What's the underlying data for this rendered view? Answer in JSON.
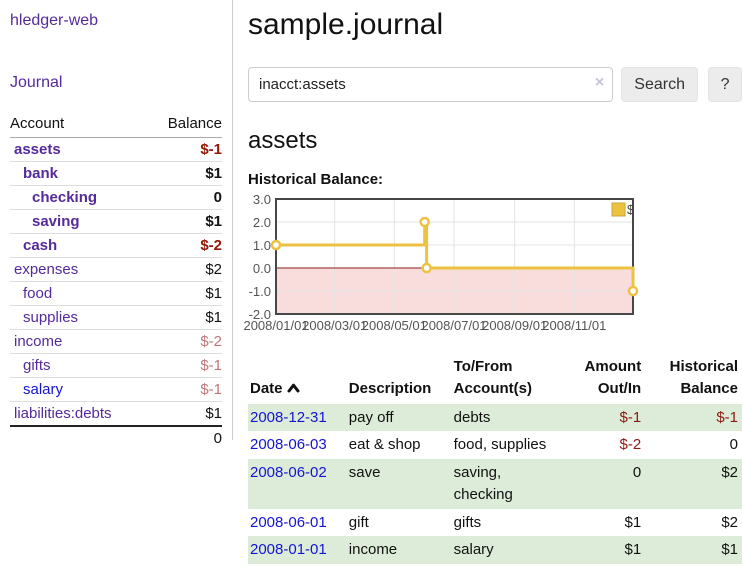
{
  "app": {
    "brand": "hledger-web",
    "nav": {
      "journal": "Journal"
    }
  },
  "sidebar": {
    "columns": {
      "account": "Account",
      "balance": "Balance"
    },
    "accounts": [
      {
        "name": "assets",
        "balance": "$-1",
        "depth": 0,
        "bold": true,
        "balance_class": "neg-strong"
      },
      {
        "name": "bank",
        "balance": "$1",
        "depth": 1,
        "bold": true,
        "balance_class": "normal"
      },
      {
        "name": "checking",
        "balance": "0",
        "depth": 2,
        "bold": true,
        "balance_class": "normal"
      },
      {
        "name": "saving",
        "balance": "$1",
        "depth": 2,
        "bold": true,
        "balance_class": "normal"
      },
      {
        "name": "cash",
        "balance": "$-2",
        "depth": 1,
        "bold": true,
        "balance_class": "neg-strong"
      },
      {
        "name": "expenses",
        "balance": "$2",
        "depth": 0,
        "bold": false,
        "balance_class": "normal"
      },
      {
        "name": "food",
        "balance": "$1",
        "depth": 1,
        "bold": false,
        "balance_class": "normal"
      },
      {
        "name": "supplies",
        "balance": "$1",
        "depth": 1,
        "bold": false,
        "balance_class": "normal"
      },
      {
        "name": "income",
        "balance": "$-2",
        "depth": 0,
        "bold": false,
        "balance_class": "neg-soft"
      },
      {
        "name": "gifts",
        "balance": "$-1",
        "depth": 1,
        "bold": false,
        "balance_class": "neg-soft"
      },
      {
        "name": "salary",
        "balance": "$-1",
        "depth": 1,
        "bold": false,
        "balance_class": "neg-soft",
        "link_color": "blue"
      },
      {
        "name": "liabilities:debts",
        "balance": "$1",
        "depth": 0,
        "bold": false,
        "balance_class": "normal"
      }
    ],
    "total": "0"
  },
  "main": {
    "title": "sample.journal",
    "search": {
      "value": "inacct:assets",
      "clear_icon": "×",
      "search_button": "Search",
      "help_button": "?"
    },
    "account_heading": "assets",
    "chart_label": "Historical Balance:"
  },
  "chart_data": {
    "type": "line",
    "title": "Historical Balance",
    "step": true,
    "x_range": [
      "2008-01-01",
      "2008-12-31"
    ],
    "ylim": [
      -2,
      3
    ],
    "y_ticks": [
      3.0,
      2.0,
      1.0,
      0.0,
      -1.0,
      -2.0
    ],
    "x_ticks": [
      {
        "date": "2008-01-01",
        "label": "2008/01/01"
      },
      {
        "date": "2008-03-01",
        "label": "2008/03/01"
      },
      {
        "date": "2008-05-01",
        "label": "2008/05/01"
      },
      {
        "date": "2008-07-01",
        "label": "2008/07/01"
      },
      {
        "date": "2008-09-01",
        "label": "2008/09/01"
      },
      {
        "date": "2008-11-01",
        "label": "2008/11/01"
      }
    ],
    "series": [
      {
        "name": "$",
        "color": "#EDC240",
        "points": [
          {
            "x": "2008-01-01",
            "y": 1
          },
          {
            "x": "2008-06-01",
            "y": 2
          },
          {
            "x": "2008-06-03",
            "y": 0
          },
          {
            "x": "2008-12-31",
            "y": -1
          }
        ]
      }
    ],
    "legend": {
      "label": "$",
      "position": "top-right"
    },
    "grid": true,
    "negative_fill": "#f9dddd",
    "zero_line_color": "#8b1a1a",
    "tick_label_color": "#545454",
    "border_color": "#474747"
  },
  "register": {
    "headers": {
      "date": "Date",
      "description": "Description",
      "tofrom_line1": "To/From",
      "tofrom_line2": "Account(s)",
      "amount_line1": "Amount",
      "amount_line2": "Out/In",
      "balance_line1": "Historical",
      "balance_line2": "Balance"
    },
    "rows": [
      {
        "date": "2008-12-31",
        "description": "pay off",
        "accounts": "debts",
        "amount": "$-1",
        "balance": "$-1",
        "amount_class": "neg",
        "balance_class": "neg"
      },
      {
        "date": "2008-06-03",
        "description": "eat & shop",
        "accounts": "food, supplies",
        "amount": "$-2",
        "balance": "0",
        "amount_class": "neg",
        "balance_class": "normal"
      },
      {
        "date": "2008-06-02",
        "description": "save",
        "accounts": "saving, checking",
        "amount": "0",
        "balance": "$2",
        "amount_class": "normal",
        "balance_class": "normal"
      },
      {
        "date": "2008-06-01",
        "description": "gift",
        "accounts": "gifts",
        "amount": "$1",
        "balance": "$2",
        "amount_class": "normal",
        "balance_class": "normal"
      },
      {
        "date": "2008-01-01",
        "description": "income",
        "accounts": "salary",
        "amount": "$1",
        "balance": "$1",
        "amount_class": "normal",
        "balance_class": "normal"
      }
    ]
  },
  "colors": {
    "link_purple": "#552a9b",
    "link_blue": "#1414d2",
    "negative_strong": "#961408",
    "negative_soft": "#be7878",
    "row_green": "#ddecd8",
    "series_yellow": "#EDC240"
  }
}
